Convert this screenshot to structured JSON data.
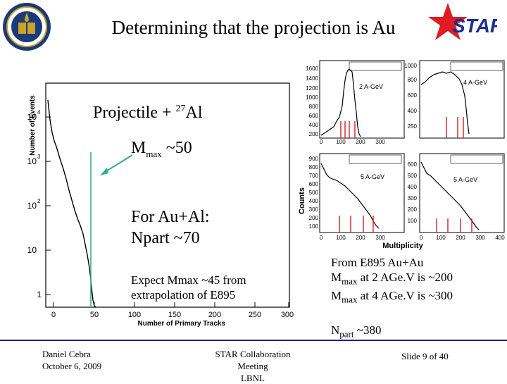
{
  "slide": {
    "title": "Determining that the projection is Au"
  },
  "left_plot": {
    "ylabel": "Number of Events",
    "xlabel": "Number of Primary Tracks",
    "y_ticks": [
      "1",
      "10",
      "10",
      "10",
      "10"
    ],
    "y_tick_exps": [
      "",
      "",
      "2",
      "3",
      "4"
    ],
    "x_ticks": [
      "0",
      "50",
      "100",
      "150",
      "200",
      "250",
      "300"
    ]
  },
  "callouts": {
    "projectile_text": "Projectile + ",
    "projectile_mass": "27",
    "projectile_element": "Al",
    "mmax_M": "M",
    "mmax_sub": "max",
    "mmax_value": " ~50",
    "auAl_line1": "For Au+Al:",
    "auAl_line2": "Npart ~70",
    "expect_line1": "Expect Mmax ~45 from",
    "expect_line2": "extrapolation of  E895"
  },
  "right_plots": {
    "ylabel": "Counts",
    "xlabel": "Multiplicity",
    "panels": [
      {
        "label": "2 A-GeV",
        "y_ticks": [
          "200",
          "400",
          "600",
          "800",
          "1000",
          "1200",
          "1400",
          "1600"
        ],
        "x_ticks": [
          "0",
          "100",
          "200",
          "300"
        ]
      },
      {
        "label": "4 A-GeV",
        "y_ticks": [
          "250",
          "400",
          "600",
          "800",
          "1000"
        ],
        "x_ticks": [],
        "y_display": [
          "1000",
          "800",
          "600",
          "400",
          "250"
        ]
      },
      {
        "label": "5 A-GeV",
        "y_ticks": [
          "900",
          "800",
          "700",
          "600",
          "500",
          "400",
          "300",
          "200",
          "100"
        ],
        "x_ticks": [
          "0",
          "100",
          "200",
          "300"
        ]
      },
      {
        "label": "5 A-GeV",
        "y_ticks": [
          "600",
          "500",
          "400",
          "300",
          "200",
          "100"
        ],
        "x_ticks": [
          "0",
          "100",
          "200",
          "300",
          "400"
        ]
      }
    ]
  },
  "right_notes": {
    "line1": "From E895 Au+Au",
    "l2_M": "M",
    "l2_sub": "max",
    "l2_rest": " at 2 AGe.V is ~200",
    "l3_M": "M",
    "l3_sub": "max",
    "l3_rest": " at 4 AGe.V is ~300",
    "l4_N": "N",
    "l4_sub": "part",
    "l4_rest": " ~380"
  },
  "footer": {
    "author": "Daniel Cebra",
    "date": "October 6, 2009",
    "meeting": "STAR Collaboration Meeting",
    "org": "LBNL",
    "slide_number": "Slide 9 of 40"
  },
  "logos": {
    "left": "university-seal-icon",
    "right": "star-logo-icon",
    "star_text": "STAR"
  },
  "colors": {
    "seal_blue": "#1b3a7a",
    "seal_gold": "#c9a227",
    "star_red": "#e01b22",
    "star_blue": "#1c2f8f",
    "marker_green": "#2eaf8a",
    "tick_red": "#d32020"
  }
}
